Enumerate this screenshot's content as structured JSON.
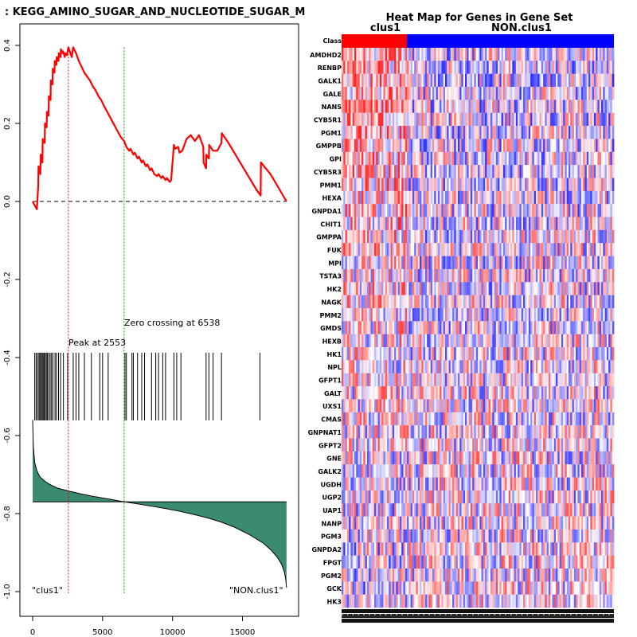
{
  "chart_data": [
    {
      "type": "line",
      "title": ": KEGG_AMINO_SUGAR_AND_NUCLEOTIDE_SUGAR_M",
      "xlabel": "",
      "ylabel": "",
      "xlim": [
        -1000,
        19000
      ],
      "ylim": [
        -1.0,
        0.45
      ],
      "x_ticks": [
        0,
        5000,
        10000,
        15000
      ],
      "y_ticks": [
        0.4,
        0.2,
        0.0,
        -0.2,
        -0.4,
        -0.6,
        -0.8,
        -1.0
      ],
      "x_tick_labels": [
        "0",
        "5000",
        "10000",
        "15000"
      ],
      "y_tick_labels": [
        "0.4",
        "0.2",
        "0.0",
        "-0.2",
        "-0.4",
        "-0.6",
        "-0.8",
        "-1.0"
      ],
      "total_genes": 18150,
      "series": [
        {
          "color": "#ff0000",
          "x": [
            0,
            300,
            400,
            420,
            550,
            580,
            700,
            720,
            860,
            880,
            1000,
            1020,
            1140,
            1160,
            1280,
            1300,
            1420,
            1440,
            1560,
            1580,
            1700,
            1720,
            1850,
            1870,
            2000,
            2020,
            2150,
            2170,
            2300,
            2320,
            2450,
            2553,
            2800,
            2900,
            3100,
            3300,
            3500,
            3700,
            3900,
            4100,
            4300,
            4500,
            4700,
            4900,
            5100,
            5400,
            5700,
            6000,
            6300,
            6538,
            6650,
            6700,
            6900,
            7000,
            7200,
            7300,
            7500,
            7600,
            7800,
            7900,
            8100,
            8200,
            8400,
            8500,
            8700,
            8900,
            9000,
            9200,
            9300,
            9500,
            9600,
            9800,
            9900,
            10100,
            10200,
            10400,
            10500,
            10700,
            11000,
            11300,
            11600,
            11900,
            12200,
            12220,
            12400,
            12420,
            12600,
            12620,
            12900,
            13200,
            13500,
            13520,
            14000,
            14500,
            15000,
            15500,
            16000,
            16300,
            16320,
            17000,
            17500,
            18150
          ],
          "y": [
            0.0,
            -0.02,
            0.04,
            0.09,
            0.07,
            0.12,
            0.1,
            0.16,
            0.15,
            0.2,
            0.19,
            0.23,
            0.22,
            0.27,
            0.26,
            0.31,
            0.3,
            0.34,
            0.33,
            0.36,
            0.35,
            0.37,
            0.36,
            0.38,
            0.37,
            0.39,
            0.38,
            0.385,
            0.37,
            0.38,
            0.375,
            0.395,
            0.37,
            0.395,
            0.38,
            0.36,
            0.345,
            0.33,
            0.32,
            0.31,
            0.295,
            0.285,
            0.27,
            0.26,
            0.245,
            0.225,
            0.205,
            0.185,
            0.165,
            0.155,
            0.145,
            0.14,
            0.13,
            0.135,
            0.12,
            0.125,
            0.11,
            0.115,
            0.1,
            0.105,
            0.09,
            0.095,
            0.08,
            0.085,
            0.07,
            0.065,
            0.07,
            0.06,
            0.065,
            0.055,
            0.06,
            0.05,
            0.055,
            0.145,
            0.135,
            0.14,
            0.125,
            0.13,
            0.16,
            0.17,
            0.155,
            0.17,
            0.14,
            0.1,
            0.085,
            0.12,
            0.11,
            0.145,
            0.13,
            0.13,
            0.15,
            0.175,
            0.15,
            0.12,
            0.09,
            0.06,
            0.03,
            0.015,
            0.1,
            0.07,
            0.04,
            0.0
          ]
        }
      ],
      "ranking_curve": {
        "x": [
          0,
          50,
          150,
          300,
          500,
          800,
          1200,
          1800,
          2553,
          3500,
          4500,
          5500,
          6538,
          7500,
          8500,
          9500,
          10500,
          11500,
          12500,
          13500,
          14500,
          15500,
          16500,
          17000,
          17500,
          17800,
          18000,
          18100,
          18150
        ],
        "y": [
          -0.56,
          -0.63,
          -0.67,
          -0.69,
          -0.705,
          -0.715,
          -0.725,
          -0.735,
          -0.742,
          -0.75,
          -0.757,
          -0.763,
          -0.77,
          -0.775,
          -0.781,
          -0.787,
          -0.794,
          -0.802,
          -0.811,
          -0.822,
          -0.836,
          -0.854,
          -0.876,
          -0.892,
          -0.912,
          -0.93,
          -0.95,
          -0.97,
          -0.99
        ],
        "zero": -0.77,
        "fill_color": "#3b8a72"
      },
      "hits": [
        150,
        250,
        350,
        450,
        520,
        600,
        680,
        750,
        820,
        900,
        980,
        1050,
        1150,
        1250,
        1350,
        1450,
        1600,
        1700,
        1850,
        2000,
        2200,
        2500,
        2900,
        3100,
        3300,
        3700,
        4200,
        4800,
        5000,
        5400,
        6600,
        6700,
        7100,
        7200,
        7500,
        7800,
        8000,
        8500,
        8800,
        9000,
        9300,
        9500,
        10100,
        10300,
        10600,
        12400,
        12600,
        12900,
        13500,
        16250
      ],
      "annotations": {
        "peak_x": 2553,
        "peak_label": "Peak at 2553",
        "zero_crossing_x": 6538,
        "zero_crossing_label": "Zero crossing at 6538",
        "left_class": "\"clus1\"",
        "right_class": "\"NON.clus1\""
      },
      "colors": {
        "es_line": "#ff0000",
        "peak_line": "#ff0000",
        "zero_line": "#009900",
        "baseline": "#000000"
      }
    },
    {
      "type": "heatmap",
      "title": "Heat Map for Genes in Gene Set",
      "class_row_label": "Class",
      "classes": [
        {
          "name": "clus1",
          "fraction": 0.24,
          "color": "#ff0000"
        },
        {
          "name": "NON.clus1",
          "fraction": 0.76,
          "color": "#0000ff"
        }
      ],
      "genes": [
        "AMDHD2",
        "RENBP",
        "GALK1",
        "GALE",
        "NANS",
        "CYB5R1",
        "PGM1",
        "GMPPB",
        "GPI",
        "CYB5R3",
        "PMM1",
        "HEXA",
        "GNPDA1",
        "CHIT1",
        "GMPPA",
        "FUK",
        "MPI",
        "TSTA3",
        "HK2",
        "NAGK",
        "PMM2",
        "GMDS",
        "HEXB",
        "HK1",
        "NPL",
        "GFPT1",
        "GALT",
        "UXS1",
        "CMAS",
        "GNPNAT1",
        "GFPT2",
        "GNE",
        "GALK2",
        "UGDH",
        "UGP2",
        "UAP1",
        "NANP",
        "PGM3",
        "GNPDA2",
        "FPGT",
        "PGM2",
        "GCK",
        "HK3"
      ],
      "columns": 150,
      "colors": {
        "high": "#ff0000",
        "mid": "#ffffff",
        "low": "#0000ff"
      }
    }
  ]
}
